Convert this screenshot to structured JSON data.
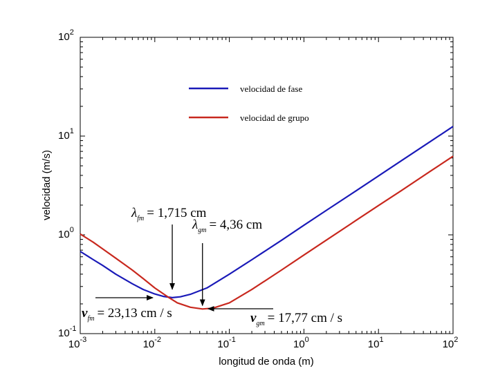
{
  "chart_data": {
    "type": "line",
    "title": "",
    "xlabel": "longitud de onda (m)",
    "ylabel": "velocidad (m/s)",
    "xscale": "log",
    "yscale": "log",
    "xlim": [
      0.001,
      100
    ],
    "ylim": [
      0.1,
      100
    ],
    "grid": false,
    "legend_position": "top-center",
    "x_ticks": [
      {
        "value": 0.001,
        "mantissa": "10",
        "exp": "-3"
      },
      {
        "value": 0.01,
        "mantissa": "10",
        "exp": "-2"
      },
      {
        "value": 0.1,
        "mantissa": "10",
        "exp": "-1"
      },
      {
        "value": 1,
        "mantissa": "10",
        "exp": "0"
      },
      {
        "value": 10,
        "mantissa": "10",
        "exp": "1"
      },
      {
        "value": 100,
        "mantissa": "10",
        "exp": "2"
      }
    ],
    "y_ticks": [
      {
        "value": 0.1,
        "mantissa": "10",
        "exp": "-1"
      },
      {
        "value": 1,
        "mantissa": "10",
        "exp": "0"
      },
      {
        "value": 10,
        "mantissa": "10",
        "exp": "1"
      },
      {
        "value": 100,
        "mantissa": "10",
        "exp": "2"
      }
    ],
    "series": [
      {
        "name": "velocidad de fase",
        "color": "#1a1ab8",
        "x": [
          0.001,
          0.0015,
          0.002,
          0.003,
          0.005,
          0.007,
          0.01,
          0.013,
          0.01715,
          0.022,
          0.03,
          0.05,
          0.1,
          0.2,
          0.5,
          1,
          2,
          5,
          10,
          20,
          50,
          100
        ],
        "y": [
          0.68,
          0.56,
          0.49,
          0.4,
          0.32,
          0.28,
          0.252,
          0.238,
          0.2313,
          0.236,
          0.25,
          0.29,
          0.4,
          0.56,
          0.88,
          1.25,
          1.77,
          2.79,
          3.95,
          5.59,
          8.83,
          12.5
        ]
      },
      {
        "name": "velocidad de grupo",
        "color": "#c8281e",
        "x": [
          0.001,
          0.0015,
          0.002,
          0.003,
          0.005,
          0.007,
          0.01,
          0.015,
          0.02,
          0.03,
          0.0436,
          0.06,
          0.1,
          0.2,
          0.5,
          1,
          2,
          5,
          10,
          20,
          50,
          100
        ],
        "y": [
          1.02,
          0.84,
          0.72,
          0.58,
          0.44,
          0.36,
          0.29,
          0.235,
          0.205,
          0.185,
          0.1777,
          0.181,
          0.205,
          0.28,
          0.44,
          0.625,
          0.885,
          1.4,
          1.98,
          2.79,
          4.42,
          6.25
        ]
      }
    ],
    "annotations": [
      {
        "id": "lambda-fm",
        "text": "λfm = 1,715 cm",
        "symbol": "λ",
        "sub": "fm",
        "value": "= 1,715 cm",
        "x": 0.01715,
        "y": 0.2313,
        "arrow": "down"
      },
      {
        "id": "lambda-gm",
        "text": "λgm = 4,36 cm",
        "symbol": "λ",
        "sub": "gm",
        "value": "= 4,36 cm",
        "x": 0.0436,
        "y": 0.1777,
        "arrow": "down"
      },
      {
        "id": "v-fm",
        "text": "vfm = 23,13 cm/s",
        "symbol": "v",
        "sub": "fm",
        "value": "= 23,13 cm / s",
        "x": 0.01715,
        "y": 0.2313,
        "arrow": "right"
      },
      {
        "id": "v-gm",
        "text": "vgm = 17,77 cm/s",
        "symbol": "v",
        "sub": "gm",
        "value": "= 17,77 cm / s",
        "x": 0.0436,
        "y": 0.1777,
        "arrow": "left"
      }
    ]
  }
}
